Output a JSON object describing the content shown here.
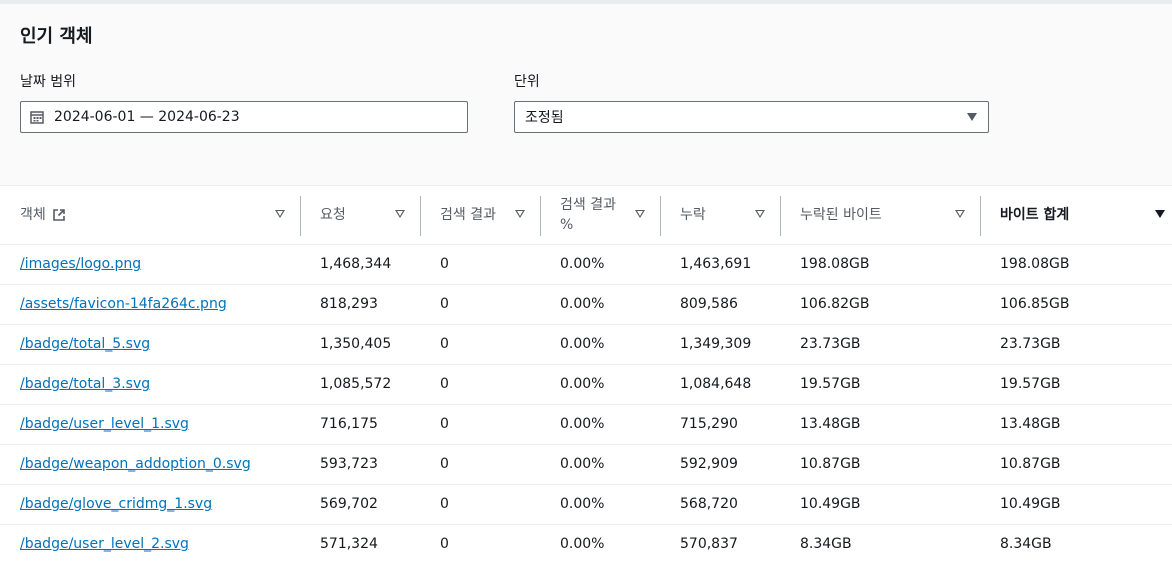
{
  "panel": {
    "title": "인기 객체",
    "date_range": {
      "label": "날짜 범위",
      "value": "2024-06-01 — 2024-06-23"
    },
    "unit": {
      "label": "단위",
      "value": "조정됨"
    }
  },
  "table": {
    "headers": [
      {
        "label": "객체"
      },
      {
        "label": "요청"
      },
      {
        "label": "검색 결과"
      },
      {
        "label": "검색 결과 %"
      },
      {
        "label": "누락"
      },
      {
        "label": "누락된 바이트"
      },
      {
        "label": "바이트 합계"
      }
    ],
    "rows": [
      [
        "/images/logo.png",
        "1,468,344",
        "0",
        "0.00%",
        "1,463,691",
        "198.08GB",
        "198.08GB"
      ],
      [
        "/assets/favicon-14fa264c.png",
        "818,293",
        "0",
        "0.00%",
        "809,586",
        "106.82GB",
        "106.85GB"
      ],
      [
        "/badge/total_5.svg",
        "1,350,405",
        "0",
        "0.00%",
        "1,349,309",
        "23.73GB",
        "23.73GB"
      ],
      [
        "/badge/total_3.svg",
        "1,085,572",
        "0",
        "0.00%",
        "1,084,648",
        "19.57GB",
        "19.57GB"
      ],
      [
        "/badge/user_level_1.svg",
        "716,175",
        "0",
        "0.00%",
        "715,290",
        "13.48GB",
        "13.48GB"
      ],
      [
        "/badge/weapon_addoption_0.svg",
        "593,723",
        "0",
        "0.00%",
        "592,909",
        "10.87GB",
        "10.87GB"
      ],
      [
        "/badge/glove_cridmg_1.svg",
        "569,702",
        "0",
        "0.00%",
        "568,720",
        "10.49GB",
        "10.49GB"
      ],
      [
        "/badge/user_level_2.svg",
        "571,324",
        "0",
        "0.00%",
        "570,837",
        "8.34GB",
        "8.34GB"
      ]
    ]
  },
  "icons": {
    "calendar": "calendar-icon",
    "external_link": "external-link-icon",
    "sort": "sort-caret-icon",
    "dropdown": "caret-down-icon"
  },
  "colors": {
    "link": "#0073bb",
    "text": "#16191f",
    "muted": "#545b64"
  }
}
